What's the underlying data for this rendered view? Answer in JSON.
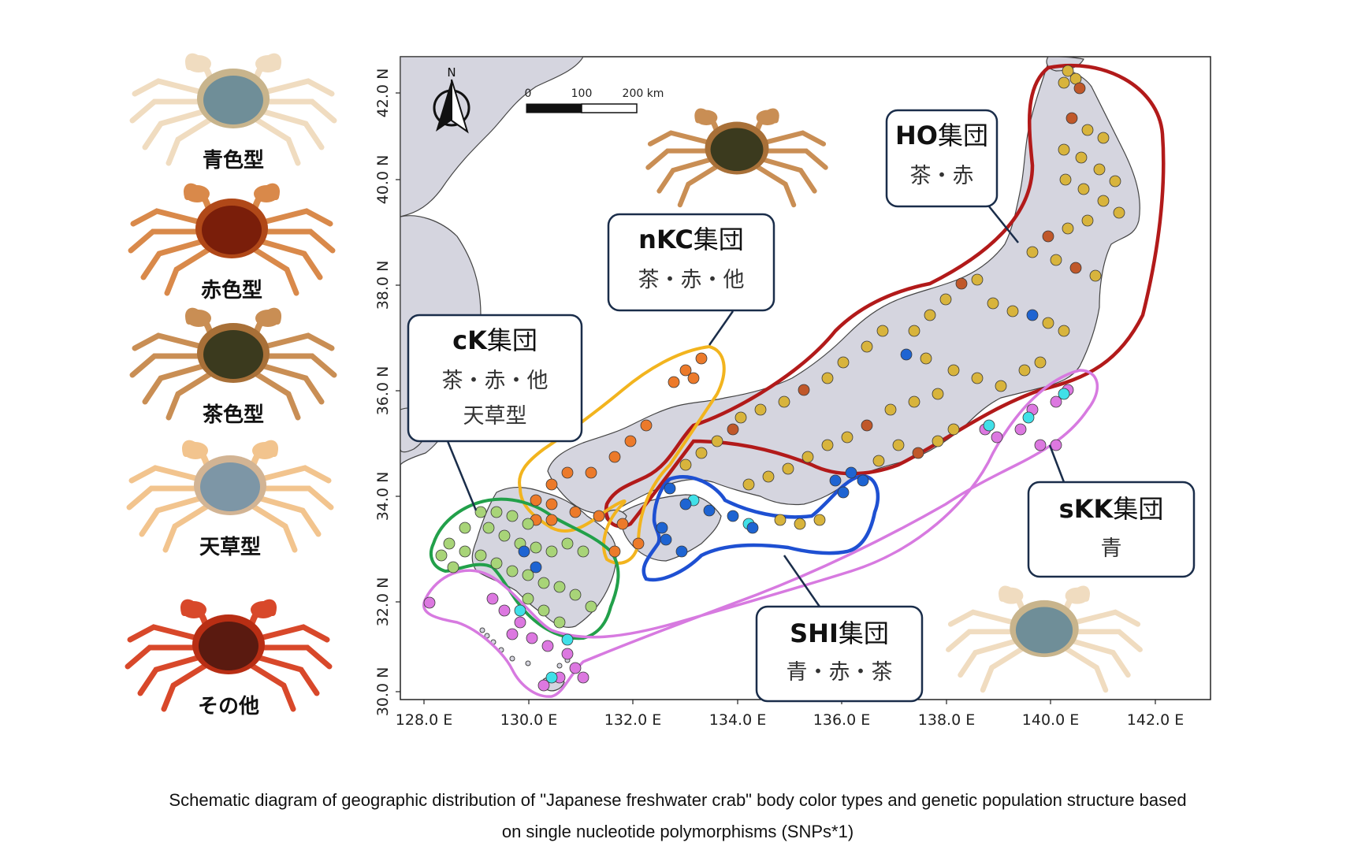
{
  "legend": {
    "types": [
      {
        "label": "青色型",
        "body_color": "#6f8e98",
        "leg_color": "#f0dcc0",
        "shell_edge": "#c8b48c"
      },
      {
        "label": "赤色型",
        "body_color": "#7a1e0a",
        "leg_color": "#d9894a",
        "shell_edge": "#b04818"
      },
      {
        "label": "茶色型",
        "body_color": "#3b3a1e",
        "leg_color": "#c98e54",
        "shell_edge": "#a87038"
      },
      {
        "label": "天草型",
        "body_color": "#7d96a6",
        "leg_color": "#f2c48e",
        "shell_edge": "#d2b494"
      },
      {
        "label": "その他",
        "body_color": "#5a1a10",
        "leg_color": "#d8482a",
        "shell_edge": "#b82e14"
      }
    ]
  },
  "map": {
    "y_axis_ticks": [
      "42.0 N",
      "40.0 N",
      "38.0 N",
      "36.0 N",
      "34.0 N",
      "32.0 N",
      "30.0 N"
    ],
    "x_axis_ticks": [
      "128.0 E",
      "130.0 E",
      "132.0 E",
      "134.0 E",
      "136.0 E",
      "138.0 E",
      "140.0 E",
      "142.0 E"
    ],
    "north_label": "N",
    "scale_bar": {
      "labels": [
        "0",
        "100",
        "200 km"
      ]
    },
    "land_color": "#d5d5df",
    "populations": [
      {
        "name_bold": "HO",
        "name_rest": "集団",
        "colors_lines": [
          "茶・赤"
        ],
        "outline_color": "#b21a1a"
      },
      {
        "name_bold": "nKC",
        "name_rest": "集団",
        "colors_lines": [
          "茶・赤・他"
        ],
        "outline_color": "#f2b41e"
      },
      {
        "name_bold": "cK",
        "name_rest": "集団",
        "colors_lines": [
          "茶・赤・他",
          "天草型"
        ],
        "outline_color": "#22a04a"
      },
      {
        "name_bold": "sKK",
        "name_rest": "集団",
        "colors_lines": [
          "青"
        ],
        "outline_color": "#d77ae0"
      },
      {
        "name_bold": "SHI",
        "name_rest": "集団",
        "colors_lines": [
          "青・赤・茶"
        ],
        "outline_color": "#1e50d2"
      }
    ],
    "marker_colors": {
      "brown": "#d8b43c",
      "red": "#c0582a",
      "orange": "#ec7a2a",
      "green": "#a8d478",
      "blue": "#1e64d2",
      "magenta": "#dc78e0",
      "cyan": "#40e0e8"
    }
  },
  "caption": {
    "line1": "Schematic diagram of geographic distribution of \"Japanese freshwater crab\" body color types and genetic population structure based",
    "line2": "on single nucleotide polymorphisms (SNPs*1)"
  }
}
